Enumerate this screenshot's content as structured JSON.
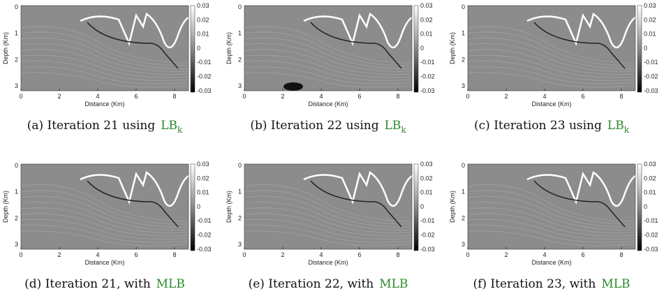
{
  "panels": [
    {
      "label": "(a) Iteration 21 using",
      "method": "LB",
      "subscript": "k"
    },
    {
      "label": "(b) Iteration 22 using",
      "method": "LB",
      "subscript": "k"
    },
    {
      "label": "(c) Iteration 23 using",
      "method": "LB",
      "subscript": "k"
    },
    {
      "label": "(d) Iteration 21, with",
      "method": "MLB"
    },
    {
      "label": "(e) Iteration 22, with",
      "method": "MLB"
    },
    {
      "label": "(f) Iteration 23, with",
      "method": "MLB"
    }
  ],
  "axes": {
    "xlabel": "Distance (Km)",
    "ylabel": "Depth (Km)",
    "xticks": [
      "0",
      "2",
      "4",
      "6",
      "8"
    ],
    "yticks": [
      "0",
      "1",
      "2",
      "3"
    ],
    "colorbar_ticks": [
      "0.03",
      "0.02",
      "0.01",
      "0",
      "-0.01",
      "-0.02",
      "-0.03"
    ]
  }
}
